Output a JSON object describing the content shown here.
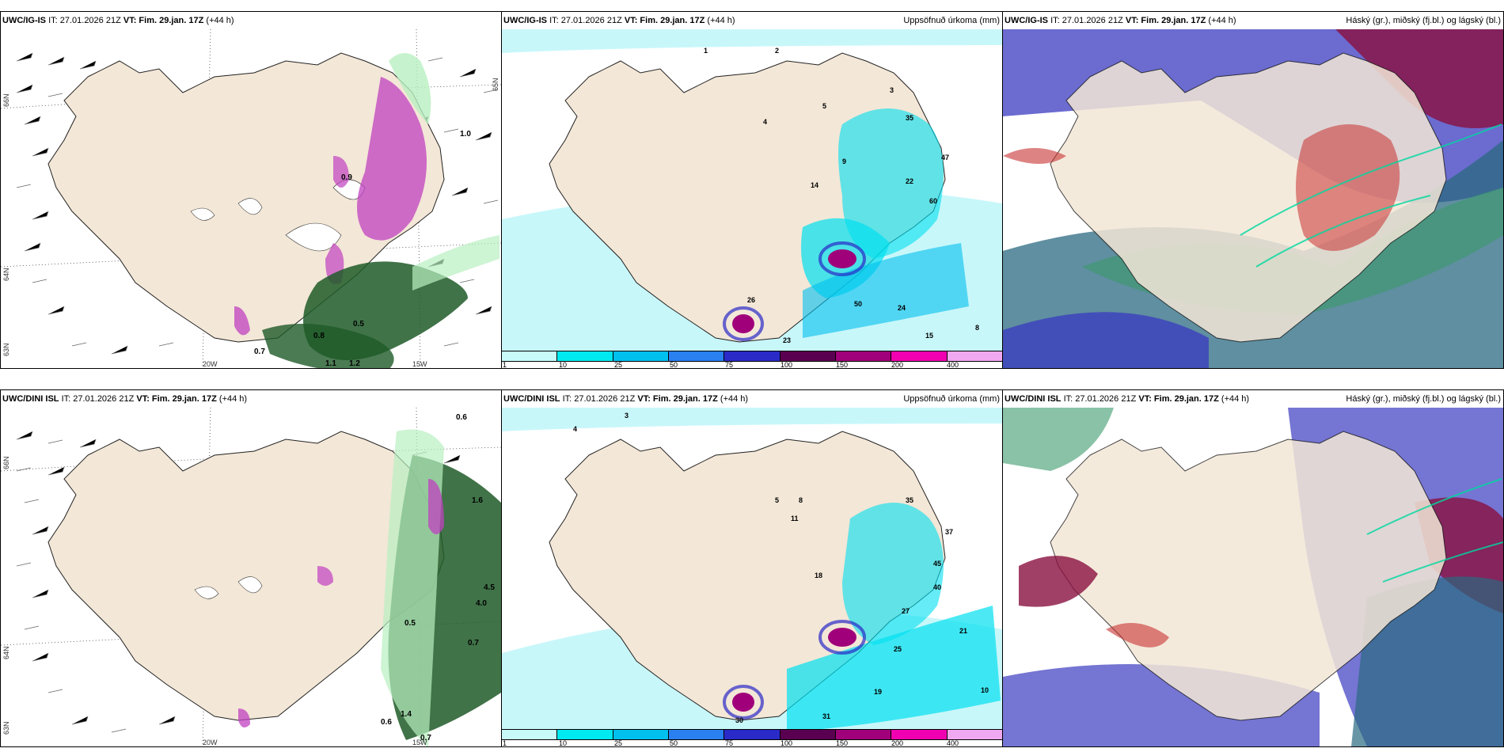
{
  "panels": {
    "top_left": {
      "model": "UWC/IG-IS",
      "it": "IT: 27.01.2026 21Z",
      "vt": "VT: Fim. 29.jan. 17Z",
      "lead": "(+44 h)",
      "title_right": ""
    },
    "top_mid": {
      "model": "UWC/IG-IS",
      "it": "IT: 27.01.2026 21Z",
      "vt": "VT: Fim. 29.jan. 17Z",
      "lead": "(+44 h)",
      "title_right": "Uppsöfnuð úrkoma (mm)"
    },
    "top_right": {
      "model": "UWC/IG-IS",
      "it": "IT: 27.01.2026 21Z",
      "vt": "VT: Fim. 29.jan. 17Z",
      "lead": "(+44 h)",
      "title_right": "Háský (gr.), miðský (fj.bl.) og lágský (bl.)"
    },
    "bottom_left": {
      "model": "UWC/DINI ISL",
      "it": "IT: 27.01.2026 21Z",
      "vt": "VT: Fim. 29.jan. 17Z",
      "lead": "(+44 h)",
      "title_right": ""
    },
    "bottom_mid": {
      "model": "UWC/DINI ISL",
      "it": "IT: 27.01.2026 21Z",
      "vt": "VT: Fim. 29.jan. 17Z",
      "lead": "(+44 h)",
      "title_right": "Uppsöfnuð úrkoma (mm)"
    },
    "bottom_right": {
      "model": "UWC/DINI ISL",
      "it": "IT: 27.01.2026 21Z",
      "vt": "VT: Fim. 29.jan. 17Z",
      "lead": "(+44 h)",
      "title_right": "Háský (gr.), miðský (fj.bl.) og lágský (bl.)"
    }
  },
  "axis_labels": {
    "lon_20w": "20W",
    "lon_15w": "15W",
    "lat_66n": "66N",
    "lat_64n": "64N",
    "lat_63n": "63N",
    "lat_65n": "65N"
  },
  "colorbar": {
    "ticks": [
      "1",
      "10",
      "25",
      "50",
      "75",
      "100",
      "150",
      "200",
      "400"
    ],
    "colors": [
      "#c8fafa",
      "#00e8f0",
      "#00c0ee",
      "#2a80f0",
      "#2a2ac8",
      "#5a0050",
      "#a0007a",
      "#f000b0",
      "#f0a8f0"
    ]
  },
  "precip_labels_top": [
    "1",
    "2",
    "3",
    "4",
    "5",
    "9",
    "14",
    "22",
    "35",
    "47",
    "60",
    "24",
    "50",
    "26",
    "23",
    "15",
    "8"
  ],
  "precip_labels_bottom": [
    "4",
    "3",
    "5",
    "8",
    "11",
    "18",
    "27",
    "35",
    "37",
    "45",
    "40",
    "21",
    "31",
    "30",
    "19",
    "10",
    "25"
  ],
  "wind_labels_top": [
    "0.8",
    "0.7",
    "0.5",
    "1.1",
    "1.2",
    "0.9",
    "1.0"
  ],
  "wind_labels_bottom": [
    "0.6",
    "1.6",
    "4.5",
    "4.0",
    "0.5",
    "0.7",
    "0.6",
    "0.7",
    "1.4"
  ],
  "colors": {
    "land": "#f3e7d7",
    "sea_light": "#c8f7fa",
    "sea_cyan": "#00e0f0",
    "magenta": "#c040c0",
    "green_dark": "#1e5a28",
    "green_light": "#b8f0c0",
    "cloud_red": "#c83030",
    "cloud_blue": "#3a3ac0",
    "cloud_teal": "#2a6a80"
  }
}
